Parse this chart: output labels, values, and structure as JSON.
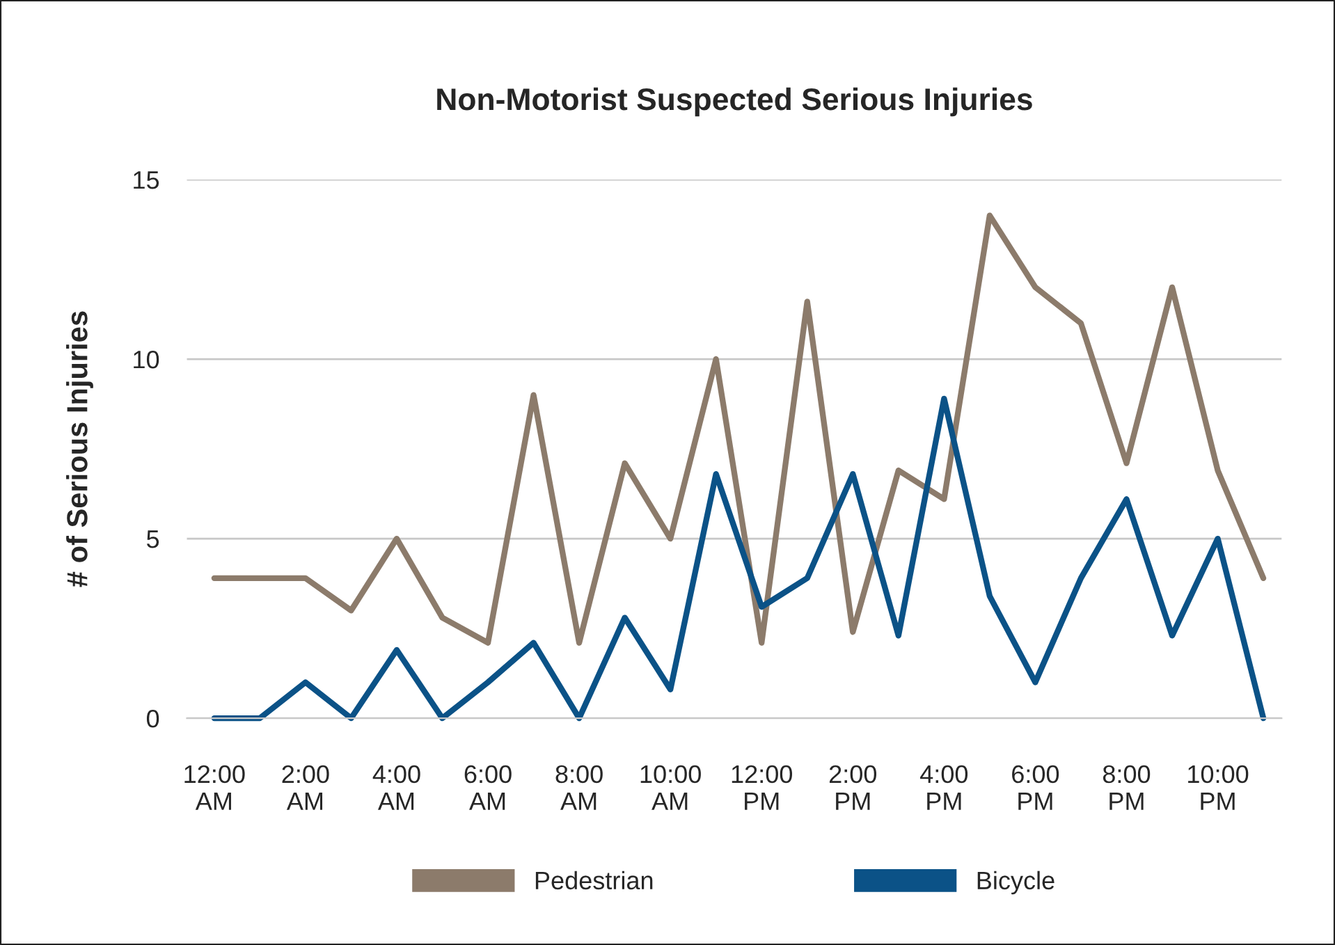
{
  "chart_data": {
    "type": "line",
    "title": "Non-Motorist Suspected Serious Injuries",
    "ylabel": "# of Serious Injuries",
    "categories": [
      "12:00\nAM",
      null,
      "2:00\nAM",
      null,
      "4:00\nAM",
      null,
      "6:00\nAM",
      null,
      "8:00\nAM",
      null,
      "10:00\nAM",
      null,
      "12:00\nPM",
      null,
      "2:00\nPM",
      null,
      "4:00\nPM",
      null,
      "6:00\nPM",
      null,
      "8:00\nPM",
      null,
      "10:00\nPM",
      null
    ],
    "series": [
      {
        "name": "Pedestrian",
        "color": "#8c7b6b",
        "values": [
          3.9,
          3.9,
          3.9,
          3,
          5,
          2.8,
          2.1,
          9,
          2.1,
          7.1,
          5,
          10,
          2.1,
          11.6,
          2.4,
          6.9,
          6.1,
          14,
          12,
          11,
          7.1,
          12,
          6.9,
          3.9
        ]
      },
      {
        "name": "Bicycle",
        "color": "#0b5287",
        "values": [
          0,
          0,
          1,
          0,
          1.9,
          0,
          1,
          2.1,
          0,
          2.8,
          0.8,
          6.8,
          3.1,
          3.9,
          6.8,
          2.3,
          8.9,
          3.4,
          1,
          3.9,
          6.1,
          2.3,
          5,
          0
        ]
      }
    ],
    "ylim": [
      0,
      15
    ],
    "yticks": [
      0,
      5,
      10,
      15
    ],
    "grid": "y",
    "legend": "bottom",
    "marker": "none",
    "line_style": "solid"
  }
}
